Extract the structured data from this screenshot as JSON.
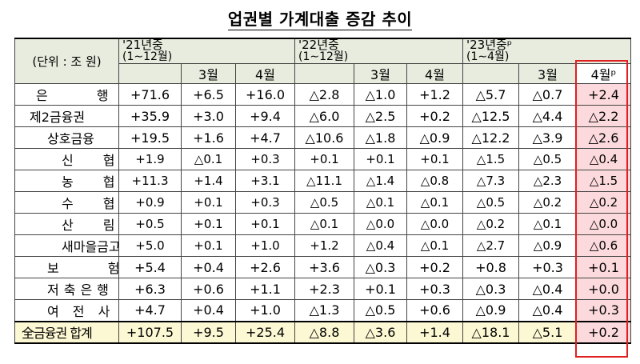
{
  "title": "업권별 가계대출 증감 추이",
  "header": {
    "unit": "(단위 : 조 원)",
    "years": [
      {
        "label": "'21년중",
        "sub": "(1∼12월)"
      },
      {
        "label": "'22년중",
        "sub": "(1∼12월)"
      },
      {
        "label": "'23년중ᵖ",
        "sub": "(1∼4월)"
      }
    ],
    "months": [
      "3월",
      "4월",
      "3월",
      "4월",
      "3월",
      "4월ᵖ"
    ]
  },
  "rows": [
    {
      "label": "은 행",
      "values": [
        "+71.6",
        "+6.5",
        "+16.0",
        "△2.8",
        "△1.0",
        "+1.2",
        "△5.7",
        "△0.7",
        "+2.4"
      ]
    },
    {
      "label": "제2금융권",
      "values": [
        "+35.9",
        "+3.0",
        "+9.4",
        "△6.0",
        "△2.5",
        "+0.2",
        "△12.5",
        "△4.4",
        "△2.2"
      ]
    },
    {
      "label": "상호금융",
      "values": [
        "+19.5",
        "+1.6",
        "+4.7",
        "△10.6",
        "△1.8",
        "△0.9",
        "△12.2",
        "△3.9",
        "△2.6"
      ]
    },
    {
      "label": "신 협",
      "values": [
        "+1.9",
        "△0.1",
        "+0.3",
        "+0.1",
        "+0.1",
        "+0.1",
        "△1.5",
        "△0.5",
        "△0.4"
      ]
    },
    {
      "label": "농 협",
      "values": [
        "+11.3",
        "+1.4",
        "+3.1",
        "△11.1",
        "△1.4",
        "△0.8",
        "△7.3",
        "△2.3",
        "△1.5"
      ]
    },
    {
      "label": "수 협",
      "values": [
        "+0.9",
        "+0.1",
        "+0.3",
        "△0.5",
        "△0.1",
        "△0.1",
        "△0.5",
        "△0.2",
        "△0.2"
      ]
    },
    {
      "label": "산 림",
      "values": [
        "+0.5",
        "+0.1",
        "+0.1",
        "△0.1",
        "△0.0",
        "△0.0",
        "△0.2",
        "△0.1",
        "△0.0"
      ]
    },
    {
      "label": "새마을금고",
      "values": [
        "+5.0",
        "+0.1",
        "+1.0",
        "+1.2",
        "△0.4",
        "△0.1",
        "△2.7",
        "△0.9",
        "△0.6"
      ]
    },
    {
      "label": "보 험",
      "values": [
        "+5.4",
        "+0.4",
        "+2.6",
        "+3.6",
        "△0.3",
        "+0.2",
        "+0.8",
        "+0.3",
        "+0.1"
      ]
    },
    {
      "label": "저축은행",
      "values": [
        "+6.3",
        "+0.6",
        "+1.1",
        "+2.3",
        "+0.1",
        "+0.3",
        "△0.3",
        "△0.4",
        "+0.0"
      ]
    },
    {
      "label": "여 전 사",
      "values": [
        "+4.7",
        "+0.4",
        "+1.0",
        "△1.3",
        "△0.5",
        "+0.6",
        "△0.9",
        "△0.4",
        "+0.3"
      ]
    }
  ],
  "total": {
    "label": "全금융권 합계",
    "values": [
      "+107.5",
      "+9.5",
      "+25.4",
      "△8.8",
      "△3.6",
      "+1.4",
      "△18.1",
      "△5.1",
      "+0.2"
    ]
  },
  "colors": {
    "header_bg": "#e7ecde",
    "total_bg": "#fdf8d4",
    "highlight_bg": "#fbd9dc",
    "highlight_border": "#e02020"
  }
}
